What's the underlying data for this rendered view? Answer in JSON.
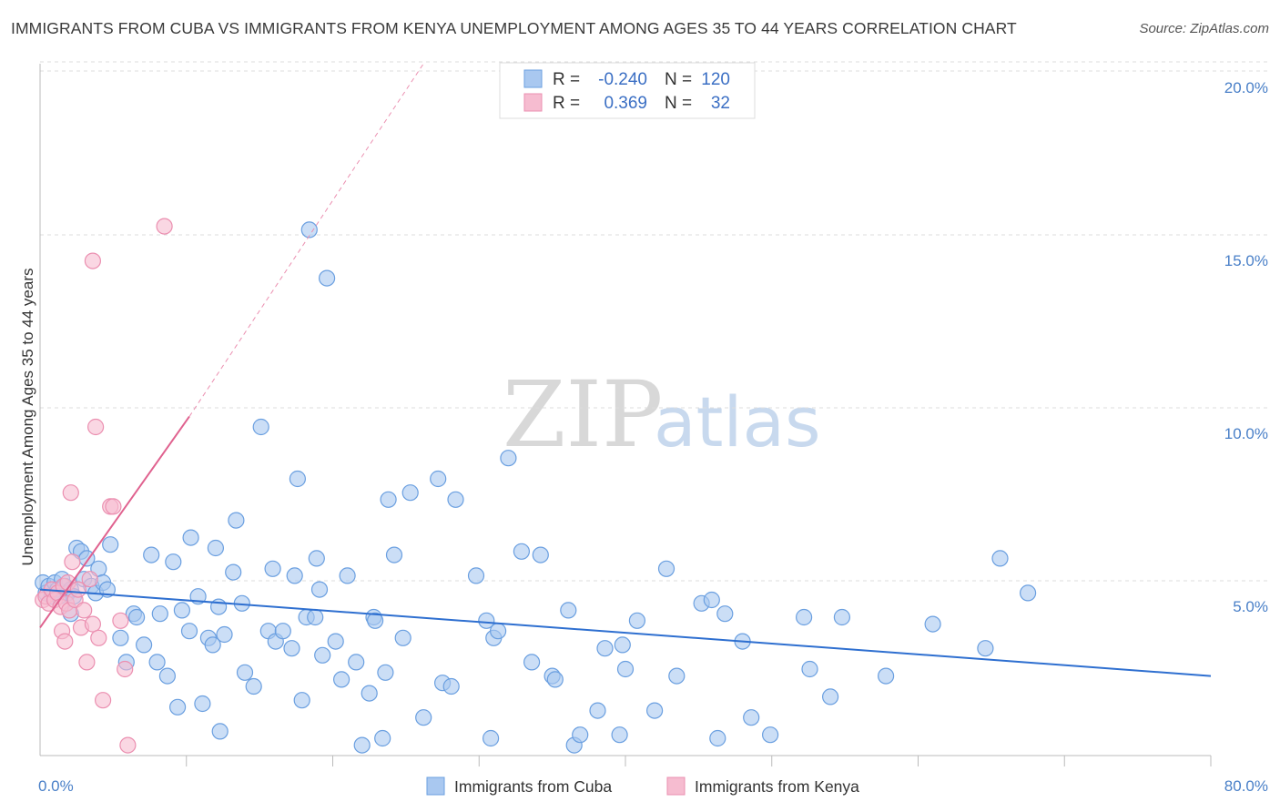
{
  "header": {
    "title": "IMMIGRANTS FROM CUBA VS IMMIGRANTS FROM KENYA UNEMPLOYMENT AMONG AGES 35 TO 44 YEARS CORRELATION CHART",
    "source": "Source: ZipAtlas.com"
  },
  "watermark": {
    "zip": "ZIP",
    "atlas": "atlas"
  },
  "legend": {
    "rows": [
      {
        "r_label": "R =",
        "r_value": "-0.240",
        "n_label": "N =",
        "n_value": "120"
      },
      {
        "r_label": "R =",
        "r_value": "0.369",
        "n_label": "N =",
        "n_value": "32"
      }
    ]
  },
  "bottom_legend": {
    "items": [
      {
        "label": "Immigrants from Cuba"
      },
      {
        "label": "Immigrants from Kenya"
      }
    ]
  },
  "chart_data": {
    "type": "scatter",
    "title": "IMMIGRANTS FROM CUBA VS IMMIGRANTS FROM KENYA UNEMPLOYMENT AMONG AGES 35 TO 44 YEARS CORRELATION CHART",
    "xlabel": "",
    "ylabel": "Unemployment Among Ages 35 to 44 years",
    "xlim": [
      0,
      80
    ],
    "ylim": [
      0,
      20
    ],
    "x_tick_labels": [
      "0.0%",
      "80.0%"
    ],
    "y_ticks": [
      5,
      10,
      15,
      20
    ],
    "y_tick_labels": [
      "5.0%",
      "10.0%",
      "15.0%",
      "20.0%"
    ],
    "grid": true,
    "legend_position": "top-center",
    "colors": {
      "cuba_fill": "#a9c8f0",
      "cuba_stroke": "#6a9fe0",
      "cuba_line": "#2e6fd0",
      "kenya_fill": "#f6bcd0",
      "kenya_stroke": "#eb8fb0",
      "kenya_line": "#e0628f",
      "tick": "#4a80c8",
      "grid": "#dddddd"
    },
    "series": [
      {
        "name": "Immigrants from Cuba",
        "R": -0.24,
        "N": 120,
        "trend": {
          "x": [
            0,
            80
          ],
          "y": [
            4.8,
            2.3
          ]
        },
        "points": [
          [
            0.2,
            5.0
          ],
          [
            0.4,
            4.7
          ],
          [
            0.6,
            4.9
          ],
          [
            0.8,
            4.6
          ],
          [
            1.0,
            5.0
          ],
          [
            1.2,
            4.8
          ],
          [
            1.3,
            4.6
          ],
          [
            1.5,
            5.1
          ],
          [
            1.7,
            4.9
          ],
          [
            1.9,
            4.7
          ],
          [
            2.1,
            4.8
          ],
          [
            2.3,
            4.6
          ],
          [
            2.5,
            6.0
          ],
          [
            2.8,
            5.9
          ],
          [
            3.0,
            5.1
          ],
          [
            3.2,
            5.7
          ],
          [
            3.5,
            4.9
          ],
          [
            3.8,
            4.7
          ],
          [
            4.0,
            5.4
          ],
          [
            4.3,
            5.0
          ],
          [
            4.6,
            4.8
          ],
          [
            4.8,
            6.1
          ],
          [
            2.1,
            4.1
          ],
          [
            5.5,
            3.4
          ],
          [
            5.9,
            2.7
          ],
          [
            6.4,
            4.1
          ],
          [
            6.6,
            4.0
          ],
          [
            7.1,
            3.2
          ],
          [
            7.6,
            5.8
          ],
          [
            8.0,
            2.7
          ],
          [
            8.2,
            4.1
          ],
          [
            8.7,
            2.3
          ],
          [
            9.1,
            5.6
          ],
          [
            9.4,
            1.4
          ],
          [
            9.7,
            4.2
          ],
          [
            10.2,
            3.6
          ],
          [
            10.3,
            6.3
          ],
          [
            10.8,
            4.6
          ],
          [
            11.1,
            1.5
          ],
          [
            11.5,
            3.4
          ],
          [
            11.8,
            3.2
          ],
          [
            12.0,
            6.0
          ],
          [
            12.2,
            4.3
          ],
          [
            12.3,
            0.7
          ],
          [
            12.6,
            3.5
          ],
          [
            13.2,
            5.3
          ],
          [
            13.4,
            6.8
          ],
          [
            13.8,
            4.4
          ],
          [
            14.0,
            2.4
          ],
          [
            14.6,
            2.0
          ],
          [
            15.1,
            9.5
          ],
          [
            15.6,
            3.6
          ],
          [
            15.9,
            5.4
          ],
          [
            16.1,
            3.3
          ],
          [
            16.6,
            3.6
          ],
          [
            17.2,
            3.1
          ],
          [
            17.4,
            5.2
          ],
          [
            17.6,
            8.0
          ],
          [
            17.9,
            1.6
          ],
          [
            18.2,
            4.0
          ],
          [
            18.4,
            15.2
          ],
          [
            18.8,
            4.0
          ],
          [
            18.9,
            5.7
          ],
          [
            19.1,
            4.8
          ],
          [
            19.3,
            2.9
          ],
          [
            19.6,
            13.8
          ],
          [
            20.2,
            3.3
          ],
          [
            20.6,
            2.2
          ],
          [
            21.0,
            5.2
          ],
          [
            21.6,
            2.7
          ],
          [
            22.0,
            0.3
          ],
          [
            22.5,
            1.8
          ],
          [
            22.8,
            4.0
          ],
          [
            22.9,
            3.9
          ],
          [
            23.4,
            0.5
          ],
          [
            23.6,
            2.4
          ],
          [
            23.8,
            7.4
          ],
          [
            24.2,
            5.8
          ],
          [
            24.8,
            3.4
          ],
          [
            25.3,
            7.6
          ],
          [
            26.2,
            1.1
          ],
          [
            27.2,
            8.0
          ],
          [
            27.5,
            2.1
          ],
          [
            28.1,
            2.0
          ],
          [
            28.4,
            7.4
          ],
          [
            29.8,
            5.2
          ],
          [
            30.5,
            3.9
          ],
          [
            30.8,
            0.5
          ],
          [
            31.0,
            3.4
          ],
          [
            31.3,
            3.6
          ],
          [
            32.0,
            8.6
          ],
          [
            32.9,
            5.9
          ],
          [
            33.6,
            2.7
          ],
          [
            34.2,
            5.8
          ],
          [
            35.0,
            2.3
          ],
          [
            35.2,
            2.2
          ],
          [
            36.1,
            4.2
          ],
          [
            36.5,
            0.3
          ],
          [
            36.9,
            0.6
          ],
          [
            38.1,
            1.3
          ],
          [
            38.6,
            3.1
          ],
          [
            39.6,
            0.6
          ],
          [
            39.8,
            3.2
          ],
          [
            40.0,
            2.5
          ],
          [
            40.8,
            3.9
          ],
          [
            42.0,
            1.3
          ],
          [
            42.8,
            5.4
          ],
          [
            43.5,
            2.3
          ],
          [
            45.2,
            4.4
          ],
          [
            45.9,
            4.5
          ],
          [
            46.3,
            0.5
          ],
          [
            46.8,
            4.1
          ],
          [
            48.0,
            3.3
          ],
          [
            49.9,
            0.6
          ],
          [
            52.2,
            4.0
          ],
          [
            52.6,
            2.5
          ],
          [
            54.0,
            1.7
          ],
          [
            54.8,
            4.0
          ],
          [
            57.8,
            2.3
          ],
          [
            61.0,
            3.8
          ],
          [
            64.6,
            3.1
          ],
          [
            65.6,
            5.7
          ],
          [
            67.5,
            4.7
          ],
          [
            48.6,
            1.1
          ]
        ]
      },
      {
        "name": "Immigrants from Kenya",
        "R": 0.369,
        "N": 32,
        "trend": {
          "x": [
            0,
            10.2
          ],
          "y": [
            3.7,
            9.8
          ]
        },
        "trend_extension": {
          "x": [
            10.2,
            26.2
          ],
          "y": [
            9.8,
            20.0
          ]
        },
        "points": [
          [
            0.2,
            4.5
          ],
          [
            0.4,
            4.6
          ],
          [
            0.6,
            4.4
          ],
          [
            0.8,
            4.8
          ],
          [
            1.0,
            4.5
          ],
          [
            1.2,
            4.7
          ],
          [
            1.4,
            4.3
          ],
          [
            1.5,
            3.6
          ],
          [
            1.6,
            4.9
          ],
          [
            1.7,
            3.3
          ],
          [
            1.8,
            4.4
          ],
          [
            1.9,
            5.0
          ],
          [
            2.0,
            4.2
          ],
          [
            2.1,
            7.6
          ],
          [
            2.2,
            5.6
          ],
          [
            2.4,
            4.5
          ],
          [
            2.6,
            4.8
          ],
          [
            2.8,
            3.7
          ],
          [
            3.0,
            4.2
          ],
          [
            3.2,
            2.7
          ],
          [
            3.4,
            5.1
          ],
          [
            3.6,
            3.8
          ],
          [
            3.8,
            9.5
          ],
          [
            4.0,
            3.4
          ],
          [
            4.3,
            1.6
          ],
          [
            4.8,
            7.2
          ],
          [
            5.0,
            7.2
          ],
          [
            5.5,
            3.9
          ],
          [
            5.8,
            2.5
          ],
          [
            6.0,
            0.3
          ],
          [
            3.6,
            14.3
          ],
          [
            8.5,
            15.3
          ]
        ]
      }
    ]
  }
}
